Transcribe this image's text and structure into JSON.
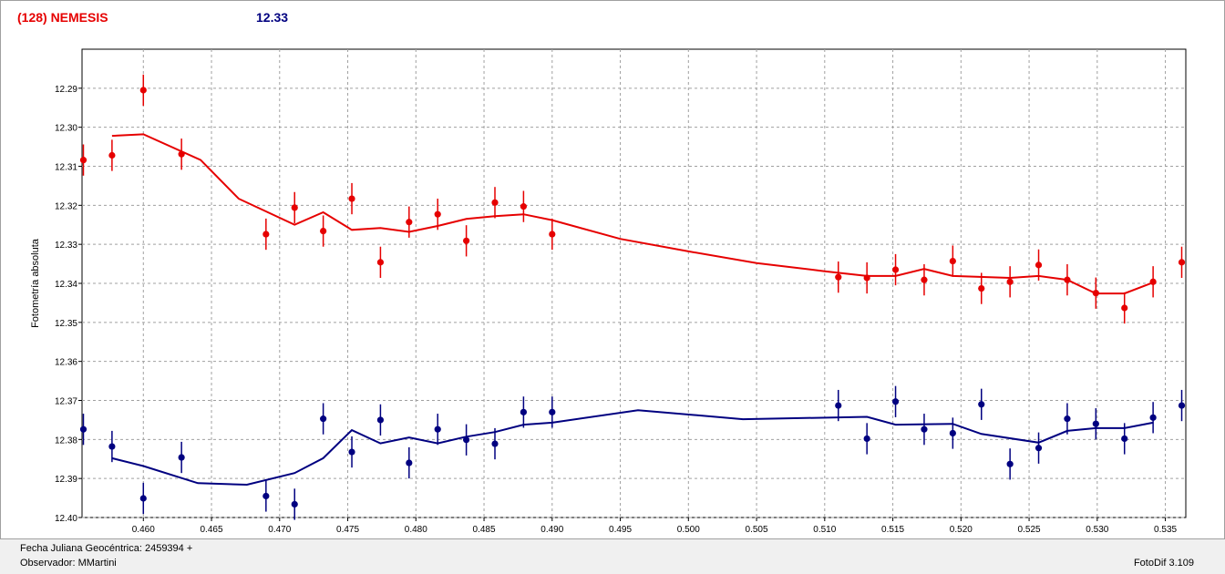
{
  "header": {
    "object_name": "(128) NEMESIS",
    "magnitude": "12.33"
  },
  "footer": {
    "date_label": "Fecha Juliana Geocéntrica: 2459394 +",
    "observer_label": "Observador: MMartini",
    "software_label": "FotoDif 3.109"
  },
  "colors": {
    "series_red": "#e60000",
    "series_blue": "#000080",
    "grid": "#a0a0a0"
  },
  "chart_data": {
    "type": "scatter",
    "title": "",
    "xlabel": "",
    "ylabel": "Fotometría absoluta",
    "xlim": [
      0.4555,
      0.5365
    ],
    "ylim": [
      12.28,
      12.4
    ],
    "y_inverted": true,
    "grid": true,
    "x_ticks": [
      "0.460",
      "0.465",
      "0.470",
      "0.475",
      "0.480",
      "0.485",
      "0.490",
      "0.495",
      "0.500",
      "0.505",
      "0.510",
      "0.515",
      "0.520",
      "0.525",
      "0.530",
      "0.535"
    ],
    "y_ticks": [
      "12.29",
      "12.30",
      "12.31",
      "12.32",
      "12.33",
      "12.34",
      "12.35",
      "12.36",
      "12.37",
      "12.38",
      "12.39",
      "12.40"
    ],
    "series": [
      {
        "color": "#e60000",
        "points": [
          [
            0.4556,
            12.3084
          ],
          [
            0.4577,
            12.3072
          ],
          [
            0.46,
            12.2905
          ],
          [
            0.4628,
            12.3069
          ],
          [
            0.469,
            12.3274
          ],
          [
            0.4711,
            12.3206
          ],
          [
            0.4732,
            12.3266
          ],
          [
            0.4753,
            12.3183
          ],
          [
            0.4774,
            12.3346
          ],
          [
            0.4795,
            12.3243
          ],
          [
            0.4816,
            12.3223
          ],
          [
            0.4837,
            12.3291
          ],
          [
            0.4858,
            12.3193
          ],
          [
            0.4879,
            12.3203
          ],
          [
            0.49,
            12.3274
          ],
          [
            0.511,
            12.3384
          ],
          [
            0.5131,
            12.3386
          ],
          [
            0.5152,
            12.3365
          ],
          [
            0.5173,
            12.3391
          ],
          [
            0.5194,
            12.3343
          ],
          [
            0.5215,
            12.3413
          ],
          [
            0.5236,
            12.3396
          ],
          [
            0.5257,
            12.3353
          ],
          [
            0.5278,
            12.3391
          ],
          [
            0.5299,
            12.3425
          ],
          [
            0.532,
            12.3463
          ],
          [
            0.5341,
            12.3396
          ],
          [
            0.5362,
            12.3346
          ]
        ],
        "fit": [
          [
            0.4577,
            12.3022
          ],
          [
            0.46,
            12.3018
          ],
          [
            0.4642,
            12.3084
          ],
          [
            0.467,
            12.3183
          ],
          [
            0.4711,
            12.325
          ],
          [
            0.4732,
            12.3218
          ],
          [
            0.4753,
            12.3263
          ],
          [
            0.4774,
            12.3258
          ],
          [
            0.4795,
            12.3268
          ],
          [
            0.4816,
            12.3253
          ],
          [
            0.4837,
            12.3235
          ],
          [
            0.4858,
            12.3228
          ],
          [
            0.4879,
            12.3223
          ],
          [
            0.49,
            12.3238
          ],
          [
            0.495,
            12.3286
          ],
          [
            0.5,
            12.3318
          ],
          [
            0.505,
            12.3348
          ],
          [
            0.51,
            12.3369
          ],
          [
            0.5131,
            12.3381
          ],
          [
            0.5152,
            12.3381
          ],
          [
            0.5173,
            12.3363
          ],
          [
            0.5194,
            12.3381
          ],
          [
            0.5236,
            12.3386
          ],
          [
            0.5257,
            12.3381
          ],
          [
            0.5278,
            12.3391
          ],
          [
            0.5299,
            12.3426
          ],
          [
            0.532,
            12.3426
          ],
          [
            0.5341,
            12.3398
          ]
        ]
      },
      {
        "color": "#000080",
        "points": [
          [
            0.4556,
            12.3774
          ],
          [
            0.4577,
            12.3818
          ],
          [
            0.46,
            12.3951
          ],
          [
            0.4628,
            12.3846
          ],
          [
            0.469,
            12.3945
          ],
          [
            0.4711,
            12.3966
          ],
          [
            0.4732,
            12.3747
          ],
          [
            0.4753,
            12.3832
          ],
          [
            0.4774,
            12.375
          ],
          [
            0.4795,
            12.386
          ],
          [
            0.4816,
            12.3774
          ],
          [
            0.4837,
            12.3801
          ],
          [
            0.4858,
            12.3811
          ],
          [
            0.4879,
            12.373
          ],
          [
            0.49,
            12.373
          ],
          [
            0.511,
            12.3713
          ],
          [
            0.5131,
            12.3798
          ],
          [
            0.5152,
            12.3703
          ],
          [
            0.5173,
            12.3774
          ],
          [
            0.5194,
            12.3784
          ],
          [
            0.5215,
            12.371
          ],
          [
            0.5236,
            12.3863
          ],
          [
            0.5257,
            12.3822
          ],
          [
            0.5278,
            12.3747
          ],
          [
            0.5299,
            12.376
          ],
          [
            0.532,
            12.3798
          ],
          [
            0.5341,
            12.3744
          ],
          [
            0.5362,
            12.3713
          ]
        ],
        "fit": [
          [
            0.4577,
            12.3848
          ],
          [
            0.46,
            12.3868
          ],
          [
            0.464,
            12.3912
          ],
          [
            0.4676,
            12.3916
          ],
          [
            0.4711,
            12.3886
          ],
          [
            0.4732,
            12.3848
          ],
          [
            0.4753,
            12.3776
          ],
          [
            0.4774,
            12.381
          ],
          [
            0.4795,
            12.3795
          ],
          [
            0.4816,
            12.381
          ],
          [
            0.4837,
            12.3793
          ],
          [
            0.4858,
            12.3781
          ],
          [
            0.4879,
            12.3762
          ],
          [
            0.49,
            12.3757
          ],
          [
            0.4963,
            12.3725
          ],
          [
            0.504,
            12.3748
          ],
          [
            0.5131,
            12.3742
          ],
          [
            0.5152,
            12.3762
          ],
          [
            0.5194,
            12.376
          ],
          [
            0.5215,
            12.3786
          ],
          [
            0.5257,
            12.3808
          ],
          [
            0.5278,
            12.3778
          ],
          [
            0.5299,
            12.3771
          ],
          [
            0.532,
            12.3771
          ],
          [
            0.5341,
            12.3757
          ]
        ]
      }
    ]
  }
}
